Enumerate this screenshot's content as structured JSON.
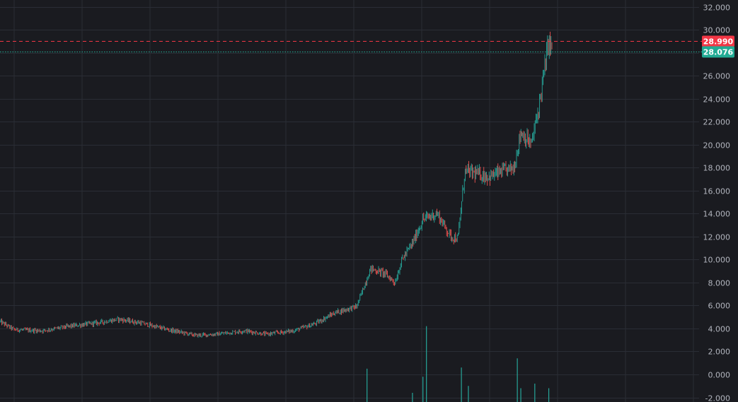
{
  "chart_data": {
    "type": "candlestick",
    "title": "",
    "xlabel": "",
    "ylabel": "",
    "y_axis_side": "right",
    "ylim": [
      -2.6,
      32.6
    ],
    "y_ticks": [
      "32.000",
      "30.000",
      "28.000",
      "26.000",
      "24.000",
      "22.000",
      "20.000",
      "18.000",
      "16.000",
      "14.000",
      "12.000",
      "10.000",
      "8.000",
      "6.000",
      "4.000",
      "2.000",
      "0.000",
      "-2.000"
    ],
    "grid": true,
    "background_color": "#1a1b20",
    "grid_color": "#2a2d35",
    "up_color": "#26a69a",
    "down_color": "#ef5350",
    "price_lines": [
      {
        "value": 28.99,
        "label": "28.990",
        "color": "#f23645",
        "style": "dashed"
      },
      {
        "value": 28.076,
        "label": "28.076",
        "color": "#22ab94",
        "style": "dotted"
      }
    ],
    "price_path": [
      [
        0,
        4.6
      ],
      [
        0.02,
        3.9
      ],
      [
        0.06,
        3.8
      ],
      [
        0.1,
        4.2
      ],
      [
        0.14,
        4.5
      ],
      [
        0.17,
        4.8
      ],
      [
        0.2,
        4.5
      ],
      [
        0.24,
        3.9
      ],
      [
        0.28,
        3.4
      ],
      [
        0.31,
        3.5
      ],
      [
        0.35,
        3.8
      ],
      [
        0.38,
        3.5
      ],
      [
        0.42,
        3.8
      ],
      [
        0.45,
        4.4
      ],
      [
        0.48,
        5.4
      ],
      [
        0.51,
        5.9
      ],
      [
        0.515,
        6.7
      ],
      [
        0.53,
        9.2
      ],
      [
        0.55,
        8.8
      ],
      [
        0.565,
        8.0
      ],
      [
        0.575,
        10.0
      ],
      [
        0.59,
        11.4
      ],
      [
        0.605,
        13.5
      ],
      [
        0.625,
        14.0
      ],
      [
        0.645,
        12.0
      ],
      [
        0.655,
        11.8
      ],
      [
        0.665,
        17.7
      ],
      [
        0.68,
        17.5
      ],
      [
        0.7,
        17.2
      ],
      [
        0.72,
        17.7
      ],
      [
        0.735,
        18.0
      ],
      [
        0.745,
        21.1
      ],
      [
        0.76,
        20.0
      ],
      [
        0.77,
        23.0
      ],
      [
        0.785,
        29.0
      ],
      [
        0.79,
        28.2
      ]
    ],
    "volume_bars": [
      {
        "x": 0.525,
        "value": 0.5
      },
      {
        "x": 0.59,
        "value": -1.6
      },
      {
        "x": 0.605,
        "value": -0.2
      },
      {
        "x": 0.61,
        "value": 4.2
      },
      {
        "x": 0.66,
        "value": 0.6
      },
      {
        "x": 0.67,
        "value": -1.0
      },
      {
        "x": 0.74,
        "value": 1.4
      },
      {
        "x": 0.745,
        "value": -1.2
      },
      {
        "x": 0.765,
        "value": -0.8
      },
      {
        "x": 0.785,
        "value": -1.2
      }
    ]
  }
}
